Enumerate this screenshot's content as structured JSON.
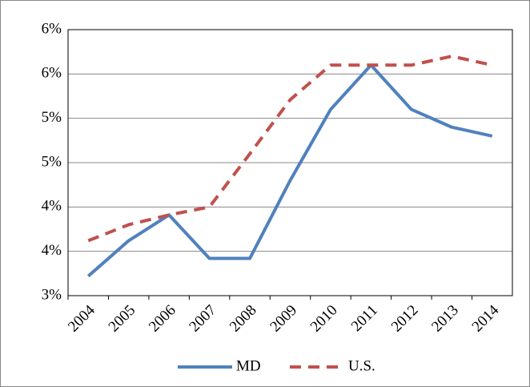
{
  "chart_data": {
    "type": "line",
    "categories": [
      "2004",
      "2005",
      "2006",
      "2007",
      "2008",
      "2009",
      "2010",
      "2011",
      "2012",
      "2013",
      "2014"
    ],
    "series": [
      {
        "name": "MD",
        "color": "#4f81bd",
        "dash": "solid",
        "values": [
          3.22,
          3.62,
          3.91,
          3.42,
          3.42,
          4.3,
          5.1,
          5.6,
          5.1,
          4.9,
          4.8
        ]
      },
      {
        "name": "U.S.",
        "color": "#c0504d",
        "dash": "dashed",
        "values": [
          3.62,
          3.8,
          3.91,
          4.0,
          4.6,
          5.21,
          5.6,
          5.6,
          5.6,
          5.7,
          5.6
        ]
      }
    ],
    "ylim": [
      3,
      6
    ],
    "yticks": [
      {
        "value": 3,
        "label": "3%"
      },
      {
        "value": 3.5,
        "label": "4%"
      },
      {
        "value": 4,
        "label": "4%"
      },
      {
        "value": 4.5,
        "label": "5%"
      },
      {
        "value": 5,
        "label": "5%"
      },
      {
        "value": 5.5,
        "label": "6%"
      },
      {
        "value": 6,
        "label": "6%"
      }
    ],
    "grid": true,
    "legend": "bottom"
  }
}
